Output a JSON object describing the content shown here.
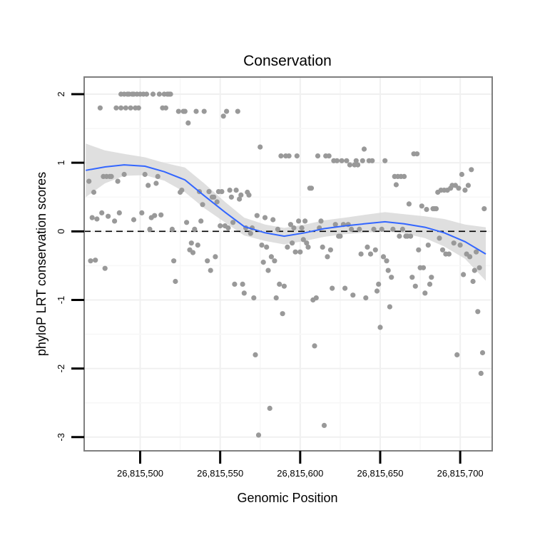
{
  "chart_data": {
    "type": "scatter",
    "title": "Conservation",
    "xlabel": "Genomic Position",
    "ylabel": "phyloP LRT conservation scores",
    "xlim": [
      26815465,
      26815720
    ],
    "ylim": [
      -3.2,
      2.25
    ],
    "x_ticks": [
      26815500,
      26815550,
      26815600,
      26815650,
      26815700
    ],
    "x_tick_labels": [
      "26,815,500",
      "26,815,550",
      "26,815,600",
      "26,815,650",
      "26,815,700"
    ],
    "y_ticks": [
      2,
      1,
      0,
      -1,
      -2,
      -3
    ],
    "y_tick_labels": [
      "2",
      "1",
      "0",
      "-1",
      "-2",
      "-3"
    ],
    "reference_line": {
      "y": 0,
      "style": "dashed",
      "color": "#000000"
    },
    "smooth_curve": {
      "x": [
        26815466,
        26815478,
        26815490,
        26815503,
        26815515,
        26815528,
        26815540,
        26815553,
        26815565,
        26815578,
        26815590,
        26815603,
        26815615,
        26815628,
        26815640,
        26815653,
        26815665,
        26815678,
        26815690,
        26815703,
        26815716
      ],
      "y": [
        0.89,
        0.94,
        0.97,
        0.95,
        0.87,
        0.75,
        0.52,
        0.28,
        0.07,
        -0.02,
        -0.07,
        -0.02,
        0.04,
        0.08,
        0.11,
        0.14,
        0.11,
        0.06,
        -0.02,
        -0.15,
        -0.33
      ],
      "upper": [
        1.28,
        1.18,
        1.13,
        1.08,
        1.0,
        0.93,
        0.7,
        0.43,
        0.2,
        0.1,
        0.05,
        0.1,
        0.16,
        0.2,
        0.24,
        0.28,
        0.25,
        0.22,
        0.18,
        0.1,
        0.06
      ],
      "lower": [
        0.5,
        0.7,
        0.81,
        0.82,
        0.74,
        0.57,
        0.34,
        0.13,
        -0.06,
        -0.14,
        -0.19,
        -0.14,
        -0.08,
        -0.04,
        -0.02,
        0.0,
        -0.03,
        -0.1,
        -0.22,
        -0.4,
        -0.72
      ]
    },
    "points": [
      {
        "x": 26815468,
        "y": 0.73
      },
      {
        "x": 26815469,
        "y": -0.43
      },
      {
        "x": 26815470,
        "y": 0.2
      },
      {
        "x": 26815471,
        "y": 0.57
      },
      {
        "x": 26815472,
        "y": -0.42
      },
      {
        "x": 26815473,
        "y": 0.18
      },
      {
        "x": 26815475,
        "y": 1.8
      },
      {
        "x": 26815476,
        "y": 0.27
      },
      {
        "x": 26815477,
        "y": 0.8
      },
      {
        "x": 26815478,
        "y": -0.54
      },
      {
        "x": 26815479,
        "y": 0.8
      },
      {
        "x": 26815480,
        "y": 0.22
      },
      {
        "x": 26815481,
        "y": 0.8
      },
      {
        "x": 26815482,
        "y": 0.8
      },
      {
        "x": 26815484,
        "y": 0.15
      },
      {
        "x": 26815485,
        "y": 1.8
      },
      {
        "x": 26815486,
        "y": 0.73
      },
      {
        "x": 26815487,
        "y": 0.27
      },
      {
        "x": 26815488,
        "y": 1.8
      },
      {
        "x": 26815488,
        "y": 2.0
      },
      {
        "x": 26815490,
        "y": 0.83
      },
      {
        "x": 26815490,
        "y": 2.0
      },
      {
        "x": 26815491,
        "y": 1.8
      },
      {
        "x": 26815492,
        "y": 2.0
      },
      {
        "x": 26815493,
        "y": 2.0
      },
      {
        "x": 26815494,
        "y": 1.8
      },
      {
        "x": 26815495,
        "y": 2.0
      },
      {
        "x": 26815496,
        "y": 0.17
      },
      {
        "x": 26815496,
        "y": 2.0
      },
      {
        "x": 26815497,
        "y": 1.8
      },
      {
        "x": 26815498,
        "y": 2.0
      },
      {
        "x": 26815499,
        "y": 1.8
      },
      {
        "x": 26815500,
        "y": 2.0
      },
      {
        "x": 26815501,
        "y": 0.27
      },
      {
        "x": 26815502,
        "y": 2.0
      },
      {
        "x": 26815503,
        "y": 0.83
      },
      {
        "x": 26815504,
        "y": 2.0
      },
      {
        "x": 26815505,
        "y": 0.67
      },
      {
        "x": 26815506,
        "y": 0.03
      },
      {
        "x": 26815507,
        "y": 0.2
      },
      {
        "x": 26815508,
        "y": 2.0
      },
      {
        "x": 26815509,
        "y": 0.23
      },
      {
        "x": 26815510,
        "y": 0.7
      },
      {
        "x": 26815511,
        "y": 0.8
      },
      {
        "x": 26815512,
        "y": 2.0
      },
      {
        "x": 26815513,
        "y": 0.24
      },
      {
        "x": 26815514,
        "y": 1.8
      },
      {
        "x": 26815515,
        "y": 2.0
      },
      {
        "x": 26815516,
        "y": 1.8
      },
      {
        "x": 26815517,
        "y": 2.0
      },
      {
        "x": 26815518,
        "y": 2.0
      },
      {
        "x": 26815519,
        "y": 2.0
      },
      {
        "x": 26815520,
        "y": 0.03
      },
      {
        "x": 26815521,
        "y": -0.43
      },
      {
        "x": 26815522,
        "y": -0.73
      },
      {
        "x": 26815524,
        "y": 1.75
      },
      {
        "x": 26815525,
        "y": 0.57
      },
      {
        "x": 26815526,
        "y": 0.6
      },
      {
        "x": 26815527,
        "y": 1.75
      },
      {
        "x": 26815528,
        "y": 1.75
      },
      {
        "x": 26815529,
        "y": 0.13
      },
      {
        "x": 26815530,
        "y": 1.58
      },
      {
        "x": 26815531,
        "y": -0.27
      },
      {
        "x": 26815532,
        "y": -0.17
      },
      {
        "x": 26815533,
        "y": -0.31
      },
      {
        "x": 26815534,
        "y": 0.03
      },
      {
        "x": 26815535,
        "y": 1.75
      },
      {
        "x": 26815536,
        "y": -0.2
      },
      {
        "x": 26815537,
        "y": 0.58
      },
      {
        "x": 26815538,
        "y": 0.15
      },
      {
        "x": 26815539,
        "y": 0.39
      },
      {
        "x": 26815540,
        "y": 1.75
      },
      {
        "x": 26815542,
        "y": -0.43
      },
      {
        "x": 26815543,
        "y": 0.58
      },
      {
        "x": 26815544,
        "y": -0.57
      },
      {
        "x": 26815545,
        "y": 0.5
      },
      {
        "x": 26815546,
        "y": 0.5
      },
      {
        "x": 26815547,
        "y": -0.37
      },
      {
        "x": 26815548,
        "y": 0.43
      },
      {
        "x": 26815549,
        "y": 0.58
      },
      {
        "x": 26815550,
        "y": 0.08
      },
      {
        "x": 26815551,
        "y": 0.58
      },
      {
        "x": 26815552,
        "y": 1.68
      },
      {
        "x": 26815553,
        "y": 0.08
      },
      {
        "x": 26815554,
        "y": 1.75
      },
      {
        "x": 26815555,
        "y": 0.05
      },
      {
        "x": 26815556,
        "y": 0.6
      },
      {
        "x": 26815557,
        "y": 0.5
      },
      {
        "x": 26815558,
        "y": 0.13
      },
      {
        "x": 26815559,
        "y": -0.77
      },
      {
        "x": 26815560,
        "y": 0.6
      },
      {
        "x": 26815561,
        "y": 1.75
      },
      {
        "x": 26815562,
        "y": 0.47
      },
      {
        "x": 26815563,
        "y": 0.53
      },
      {
        "x": 26815564,
        "y": -0.77
      },
      {
        "x": 26815565,
        "y": -0.9
      },
      {
        "x": 26815566,
        "y": 0.05
      },
      {
        "x": 26815567,
        "y": 0.57
      },
      {
        "x": 26815568,
        "y": 0.53
      },
      {
        "x": 26815569,
        "y": -0.03
      },
      {
        "x": 26815570,
        "y": 0.05
      },
      {
        "x": 26815571,
        "y": -0.97
      },
      {
        "x": 26815572,
        "y": -1.8
      },
      {
        "x": 26815573,
        "y": 0.23
      },
      {
        "x": 26815574,
        "y": -2.97
      },
      {
        "x": 26815575,
        "y": 1.23
      },
      {
        "x": 26815576,
        "y": -0.2
      },
      {
        "x": 26815577,
        "y": -0.45
      },
      {
        "x": 26815578,
        "y": 0.2
      },
      {
        "x": 26815579,
        "y": -0.23
      },
      {
        "x": 26815580,
        "y": -0.57
      },
      {
        "x": 26815581,
        "y": -2.58
      },
      {
        "x": 26815582,
        "y": -0.37
      },
      {
        "x": 26815583,
        "y": 0.17
      },
      {
        "x": 26815584,
        "y": -0.43
      },
      {
        "x": 26815585,
        "y": -0.97
      },
      {
        "x": 26815586,
        "y": 0.03
      },
      {
        "x": 26815587,
        "y": -0.77
      },
      {
        "x": 26815588,
        "y": 1.1
      },
      {
        "x": 26815589,
        "y": -1.2
      },
      {
        "x": 26815590,
        "y": -0.8
      },
      {
        "x": 26815591,
        "y": 1.1
      },
      {
        "x": 26815592,
        "y": -0.23
      },
      {
        "x": 26815593,
        "y": 1.1
      },
      {
        "x": 26815594,
        "y": 0.1
      },
      {
        "x": 26815595,
        "y": -0.17
      },
      {
        "x": 26815596,
        "y": 0.05
      },
      {
        "x": 26815597,
        "y": -0.3
      },
      {
        "x": 26815598,
        "y": 1.1
      },
      {
        "x": 26815599,
        "y": 0.15
      },
      {
        "x": 26815600,
        "y": -0.3
      },
      {
        "x": 26815601,
        "y": 0.05
      },
      {
        "x": 26815602,
        "y": -0.12
      },
      {
        "x": 26815603,
        "y": 0.15
      },
      {
        "x": 26815604,
        "y": -0.17
      },
      {
        "x": 26815605,
        "y": -0.23
      },
      {
        "x": 26815606,
        "y": 0.63
      },
      {
        "x": 26815607,
        "y": 0.63
      },
      {
        "x": 26815608,
        "y": -1.0
      },
      {
        "x": 26815609,
        "y": -1.67
      },
      {
        "x": 26815610,
        "y": -0.97
      },
      {
        "x": 26815611,
        "y": 1.1
      },
      {
        "x": 26815612,
        "y": 0.05
      },
      {
        "x": 26815613,
        "y": 0.15
      },
      {
        "x": 26815614,
        "y": -0.23
      },
      {
        "x": 26815615,
        "y": -2.83
      },
      {
        "x": 26815616,
        "y": 1.1
      },
      {
        "x": 26815617,
        "y": -0.37
      },
      {
        "x": 26815618,
        "y": 1.1
      },
      {
        "x": 26815619,
        "y": -0.27
      },
      {
        "x": 26815620,
        "y": -0.83
      },
      {
        "x": 26815621,
        "y": 1.03
      },
      {
        "x": 26815622,
        "y": 0.1
      },
      {
        "x": 26815623,
        "y": 1.03
      },
      {
        "x": 26815624,
        "y": -0.07
      },
      {
        "x": 26815625,
        "y": -0.07
      },
      {
        "x": 26815626,
        "y": 1.03
      },
      {
        "x": 26815627,
        "y": 0.1
      },
      {
        "x": 26815628,
        "y": -0.83
      },
      {
        "x": 26815629,
        "y": 1.03
      },
      {
        "x": 26815630,
        "y": 0.1
      },
      {
        "x": 26815631,
        "y": 0.97
      },
      {
        "x": 26815632,
        "y": 0.03
      },
      {
        "x": 26815633,
        "y": -0.93
      },
      {
        "x": 26815634,
        "y": 0.97
      },
      {
        "x": 26815635,
        "y": 1.03
      },
      {
        "x": 26815636,
        "y": 0.97
      },
      {
        "x": 26815637,
        "y": 0.03
      },
      {
        "x": 26815638,
        "y": -0.33
      },
      {
        "x": 26815639,
        "y": 1.03
      },
      {
        "x": 26815640,
        "y": 1.2
      },
      {
        "x": 26815641,
        "y": -0.97
      },
      {
        "x": 26815642,
        "y": -0.23
      },
      {
        "x": 26815643,
        "y": 1.03
      },
      {
        "x": 26815644,
        "y": -0.33
      },
      {
        "x": 26815645,
        "y": 1.03
      },
      {
        "x": 26815646,
        "y": 0.03
      },
      {
        "x": 26815647,
        "y": -0.27
      },
      {
        "x": 26815648,
        "y": -0.87
      },
      {
        "x": 26815649,
        "y": -0.77
      },
      {
        "x": 26815650,
        "y": -1.4
      },
      {
        "x": 26815651,
        "y": 0.03
      },
      {
        "x": 26815652,
        "y": -0.37
      },
      {
        "x": 26815653,
        "y": 1.03
      },
      {
        "x": 26815654,
        "y": -0.43
      },
      {
        "x": 26815655,
        "y": -0.57
      },
      {
        "x": 26815656,
        "y": -1.1
      },
      {
        "x": 26815657,
        "y": -0.67
      },
      {
        "x": 26815658,
        "y": 0.03
      },
      {
        "x": 26815659,
        "y": 0.8
      },
      {
        "x": 26815660,
        "y": 0.68
      },
      {
        "x": 26815661,
        "y": 0.8
      },
      {
        "x": 26815662,
        "y": -0.07
      },
      {
        "x": 26815663,
        "y": 0.8
      },
      {
        "x": 26815664,
        "y": 0.03
      },
      {
        "x": 26815665,
        "y": 0.8
      },
      {
        "x": 26815666,
        "y": -0.07
      },
      {
        "x": 26815667,
        "y": -0.07
      },
      {
        "x": 26815668,
        "y": 0.4
      },
      {
        "x": 26815669,
        "y": -0.07
      },
      {
        "x": 26815670,
        "y": -0.67
      },
      {
        "x": 26815671,
        "y": 1.13
      },
      {
        "x": 26815672,
        "y": -0.8
      },
      {
        "x": 26815673,
        "y": 1.13
      },
      {
        "x": 26815674,
        "y": -0.27
      },
      {
        "x": 26815675,
        "y": -0.53
      },
      {
        "x": 26815676,
        "y": 0.37
      },
      {
        "x": 26815677,
        "y": -0.53
      },
      {
        "x": 26815678,
        "y": -0.9
      },
      {
        "x": 26815679,
        "y": 0.32
      },
      {
        "x": 26815680,
        "y": -0.2
      },
      {
        "x": 26815681,
        "y": -0.77
      },
      {
        "x": 26815682,
        "y": -0.67
      },
      {
        "x": 26815683,
        "y": 0.33
      },
      {
        "x": 26815684,
        "y": 0.33
      },
      {
        "x": 26815685,
        "y": 0.33
      },
      {
        "x": 26815686,
        "y": 0.57
      },
      {
        "x": 26815687,
        "y": -0.1
      },
      {
        "x": 26815688,
        "y": 0.6
      },
      {
        "x": 26815689,
        "y": -0.27
      },
      {
        "x": 26815690,
        "y": 0.6
      },
      {
        "x": 26815691,
        "y": -0.33
      },
      {
        "x": 26815692,
        "y": 0.6
      },
      {
        "x": 26815693,
        "y": -0.33
      },
      {
        "x": 26815694,
        "y": 0.63
      },
      {
        "x": 26815695,
        "y": 0.67
      },
      {
        "x": 26815696,
        "y": -0.17
      },
      {
        "x": 26815697,
        "y": 0.67
      },
      {
        "x": 26815698,
        "y": -1.8
      },
      {
        "x": 26815699,
        "y": 0.63
      },
      {
        "x": 26815700,
        "y": -0.2
      },
      {
        "x": 26815701,
        "y": 0.83
      },
      {
        "x": 26815702,
        "y": -0.63
      },
      {
        "x": 26815703,
        "y": 0.6
      },
      {
        "x": 26815704,
        "y": -0.33
      },
      {
        "x": 26815705,
        "y": 0.67
      },
      {
        "x": 26815706,
        "y": -0.37
      },
      {
        "x": 26815707,
        "y": 0.9
      },
      {
        "x": 26815708,
        "y": -0.73
      },
      {
        "x": 26815709,
        "y": -0.57
      },
      {
        "x": 26815710,
        "y": -0.3
      },
      {
        "x": 26815711,
        "y": -1.17
      },
      {
        "x": 26815712,
        "y": -0.53
      },
      {
        "x": 26815713,
        "y": -2.07
      },
      {
        "x": 26815714,
        "y": -1.77
      },
      {
        "x": 26815715,
        "y": 0.33
      }
    ],
    "point_color": "#999999",
    "curve_color": "#3366ff",
    "band_color": "#d9d9d9",
    "grid": true,
    "legend": "none"
  }
}
